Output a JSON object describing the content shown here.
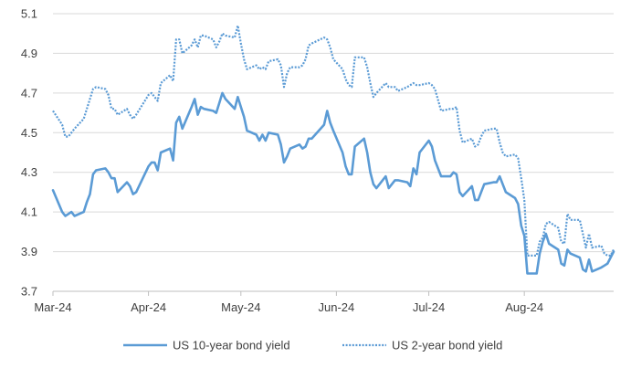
{
  "chart_data": {
    "type": "line",
    "title": "",
    "xlabel": "",
    "ylabel": "",
    "ylim": [
      3.7,
      5.1
    ],
    "yticks": [
      3.7,
      3.9,
      4.1,
      4.3,
      4.5,
      4.7,
      4.9,
      5.1
    ],
    "ytick_labels": [
      "3.7",
      "3.9",
      "4.1",
      "4.3",
      "4.5",
      "4.7",
      "4.9",
      "5.1"
    ],
    "xlim": [
      "2024-03-01",
      "2024-08-30"
    ],
    "xtick_dates": [
      "2024-03-01",
      "2024-04-01",
      "2024-05-01",
      "2024-06-01",
      "2024-07-01",
      "2024-08-01"
    ],
    "xtick_labels": [
      "Mar-24",
      "Apr-24",
      "May-24",
      "Jun-24",
      "Jul-24",
      "Aug-24"
    ],
    "grid": "horizontal",
    "legend_position": "bottom",
    "x": [
      "2024-03-01",
      "2024-03-04",
      "2024-03-05",
      "2024-03-06",
      "2024-03-07",
      "2024-03-08",
      "2024-03-11",
      "2024-03-12",
      "2024-03-13",
      "2024-03-14",
      "2024-03-15",
      "2024-03-18",
      "2024-03-19",
      "2024-03-20",
      "2024-03-21",
      "2024-03-22",
      "2024-03-25",
      "2024-03-26",
      "2024-03-27",
      "2024-03-28",
      "2024-04-01",
      "2024-04-02",
      "2024-04-03",
      "2024-04-04",
      "2024-04-05",
      "2024-04-08",
      "2024-04-09",
      "2024-04-10",
      "2024-04-11",
      "2024-04-12",
      "2024-04-15",
      "2024-04-16",
      "2024-04-17",
      "2024-04-18",
      "2024-04-19",
      "2024-04-22",
      "2024-04-23",
      "2024-04-24",
      "2024-04-25",
      "2024-04-26",
      "2024-04-29",
      "2024-04-30",
      "2024-05-01",
      "2024-05-02",
      "2024-05-03",
      "2024-05-06",
      "2024-05-07",
      "2024-05-08",
      "2024-05-09",
      "2024-05-10",
      "2024-05-13",
      "2024-05-14",
      "2024-05-15",
      "2024-05-16",
      "2024-05-17",
      "2024-05-20",
      "2024-05-21",
      "2024-05-22",
      "2024-05-23",
      "2024-05-24",
      "2024-05-28",
      "2024-05-29",
      "2024-05-30",
      "2024-05-31",
      "2024-06-03",
      "2024-06-04",
      "2024-06-05",
      "2024-06-06",
      "2024-06-07",
      "2024-06-10",
      "2024-06-11",
      "2024-06-12",
      "2024-06-13",
      "2024-06-14",
      "2024-06-17",
      "2024-06-18",
      "2024-06-20",
      "2024-06-21",
      "2024-06-24",
      "2024-06-25",
      "2024-06-26",
      "2024-06-27",
      "2024-06-28",
      "2024-07-01",
      "2024-07-02",
      "2024-07-03",
      "2024-07-05",
      "2024-07-08",
      "2024-07-09",
      "2024-07-10",
      "2024-07-11",
      "2024-07-12",
      "2024-07-15",
      "2024-07-16",
      "2024-07-17",
      "2024-07-18",
      "2024-07-19",
      "2024-07-22",
      "2024-07-23",
      "2024-07-24",
      "2024-07-25",
      "2024-07-26",
      "2024-07-29",
      "2024-07-30",
      "2024-07-31",
      "2024-08-01",
      "2024-08-02",
      "2024-08-05",
      "2024-08-06",
      "2024-08-07",
      "2024-08-08",
      "2024-08-09",
      "2024-08-12",
      "2024-08-13",
      "2024-08-14",
      "2024-08-15",
      "2024-08-16",
      "2024-08-19",
      "2024-08-20",
      "2024-08-21",
      "2024-08-22",
      "2024-08-23",
      "2024-08-26",
      "2024-08-27",
      "2024-08-28",
      "2024-08-29",
      "2024-08-30"
    ],
    "series": [
      {
        "name": "US 10-year bond yield",
        "style": "solid",
        "color": "#5b9bd5",
        "values": [
          4.21,
          4.1,
          4.08,
          4.09,
          4.1,
          4.08,
          4.1,
          4.15,
          4.19,
          4.29,
          4.31,
          4.32,
          4.3,
          4.27,
          4.27,
          4.2,
          4.25,
          4.23,
          4.19,
          4.2,
          4.33,
          4.35,
          4.35,
          4.31,
          4.4,
          4.42,
          4.36,
          4.55,
          4.58,
          4.52,
          4.63,
          4.67,
          4.59,
          4.63,
          4.62,
          4.61,
          4.6,
          4.65,
          4.7,
          4.67,
          4.62,
          4.68,
          4.63,
          4.58,
          4.51,
          4.49,
          4.46,
          4.49,
          4.46,
          4.5,
          4.49,
          4.44,
          4.35,
          4.38,
          4.42,
          4.44,
          4.42,
          4.43,
          4.47,
          4.47,
          4.54,
          4.61,
          4.55,
          4.51,
          4.4,
          4.33,
          4.29,
          4.29,
          4.43,
          4.47,
          4.4,
          4.3,
          4.24,
          4.22,
          4.28,
          4.22,
          4.26,
          4.26,
          4.25,
          4.23,
          4.32,
          4.29,
          4.4,
          4.46,
          4.43,
          4.36,
          4.28,
          4.28,
          4.3,
          4.29,
          4.2,
          4.18,
          4.23,
          4.16,
          4.16,
          4.2,
          4.24,
          4.25,
          4.25,
          4.28,
          4.24,
          4.2,
          4.17,
          4.14,
          4.03,
          3.98,
          3.79,
          3.79,
          3.89,
          3.95,
          3.99,
          3.94,
          3.91,
          3.84,
          3.83,
          3.91,
          3.89,
          3.87,
          3.81,
          3.8,
          3.86,
          3.8,
          3.82,
          3.83,
          3.84,
          3.87,
          3.9
        ]
      },
      {
        "name": "US 2-year bond yield",
        "style": "dotted",
        "color": "#5b9bd5",
        "values": [
          4.61,
          4.54,
          4.48,
          4.48,
          4.5,
          4.52,
          4.57,
          4.62,
          4.67,
          4.72,
          4.73,
          4.72,
          4.69,
          4.62,
          4.62,
          4.59,
          4.62,
          4.59,
          4.57,
          4.59,
          4.69,
          4.7,
          4.68,
          4.66,
          4.75,
          4.79,
          4.76,
          4.97,
          4.97,
          4.9,
          4.94,
          4.97,
          4.93,
          4.99,
          4.99,
          4.97,
          4.93,
          4.96,
          5.0,
          4.99,
          4.98,
          5.04,
          4.95,
          4.87,
          4.82,
          4.84,
          4.82,
          4.83,
          4.82,
          4.86,
          4.87,
          4.84,
          4.73,
          4.8,
          4.83,
          4.83,
          4.84,
          4.87,
          4.94,
          4.95,
          4.98,
          4.97,
          4.93,
          4.87,
          4.82,
          4.77,
          4.74,
          4.73,
          4.88,
          4.88,
          4.83,
          4.75,
          4.68,
          4.7,
          4.75,
          4.73,
          4.73,
          4.71,
          4.73,
          4.74,
          4.75,
          4.74,
          4.74,
          4.75,
          4.74,
          4.72,
          4.61,
          4.62,
          4.62,
          4.63,
          4.51,
          4.45,
          4.47,
          4.43,
          4.44,
          4.48,
          4.51,
          4.52,
          4.52,
          4.45,
          4.4,
          4.38,
          4.39,
          4.37,
          4.27,
          4.16,
          3.88,
          3.88,
          3.95,
          3.97,
          4.04,
          4.05,
          4.02,
          3.95,
          3.94,
          4.09,
          4.06,
          4.06,
          3.99,
          3.92,
          3.99,
          3.92,
          3.93,
          3.89,
          3.88,
          3.88,
          3.91
        ]
      }
    ]
  }
}
